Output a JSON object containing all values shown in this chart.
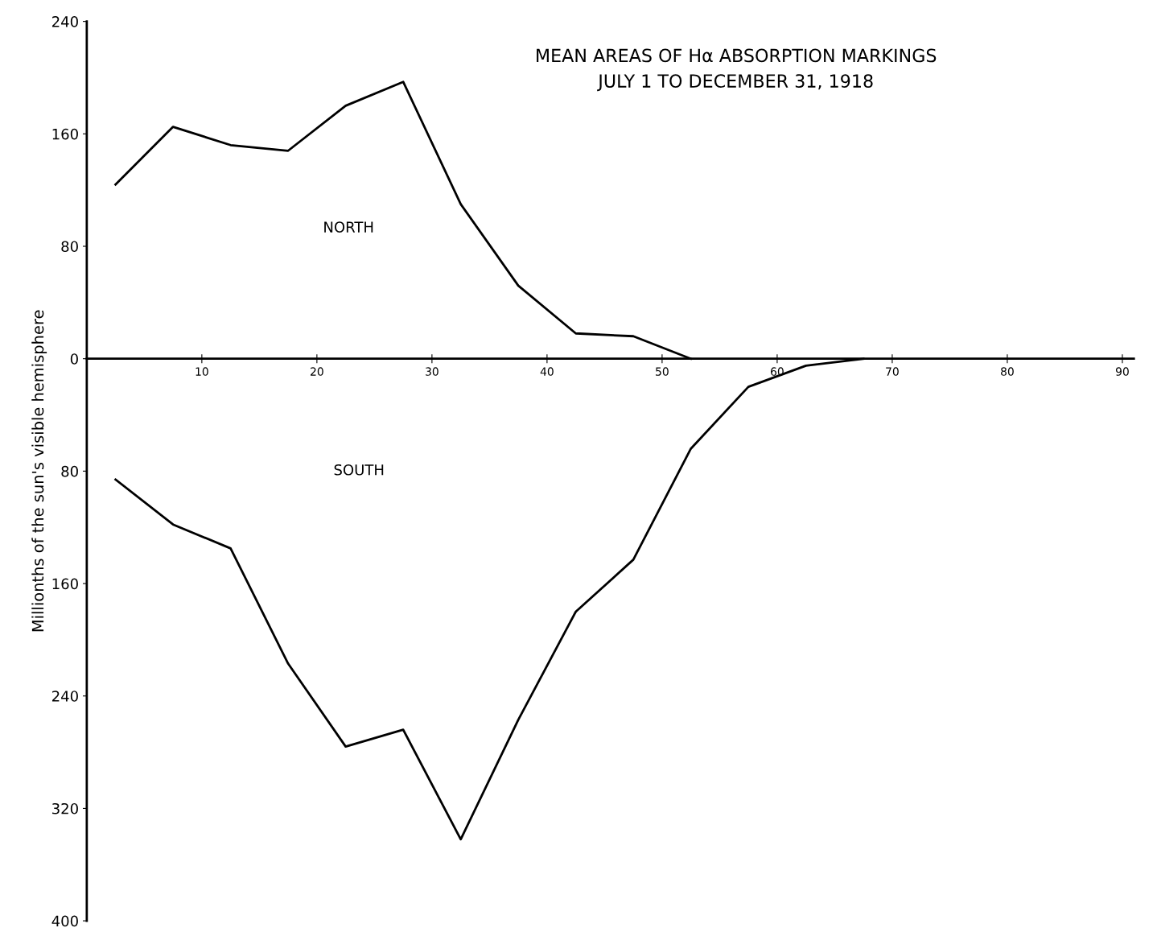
{
  "chart_data": {
    "type": "line",
    "title": "MEAN AREAS OF Hα ABSORPTION MARKINGS\nJULY 1 TO DECEMBER 31, 1918",
    "ylabel": "Millionths of the sun's visible hemisphere",
    "annotations": [
      "NORTH",
      "SOUTH"
    ],
    "series": [
      {
        "color": "#000000",
        "x": [
          2.5,
          7.5,
          12.5,
          17.5,
          22.5,
          27.5,
          32.5,
          37.5,
          42.5,
          47.5,
          52.5
        ],
        "values": [
          124,
          165,
          152,
          148,
          180,
          197,
          110,
          52,
          18,
          16,
          0
        ]
      },
      {
        "color": "#000000",
        "x": [
          2.5,
          7.5,
          12.5,
          17.5,
          22.5,
          27.5,
          32.5,
          37.5,
          42.5,
          47.5,
          52.5,
          57.5,
          62.5,
          67.5
        ],
        "values": [
          -86,
          -118,
          -135,
          -217,
          -276,
          -264,
          -342,
          -257,
          -180,
          -143,
          -64,
          -20,
          -5,
          0
        ]
      }
    ],
    "xlim": [
      0,
      91
    ],
    "xticks": [
      10,
      20,
      30,
      40,
      50,
      60,
      70,
      80,
      90
    ],
    "ylim": [
      -400,
      240
    ],
    "yticks": [
      240,
      160,
      80,
      0,
      {
        "value": -80,
        "label": "80"
      },
      {
        "value": -160,
        "label": "160"
      },
      {
        "value": -240,
        "label": "240"
      },
      {
        "value": -320,
        "label": "320"
      },
      {
        "value": -400,
        "label": "400"
      }
    ],
    "grid": false,
    "legend": false,
    "marker": "none",
    "line_style": "solid"
  }
}
